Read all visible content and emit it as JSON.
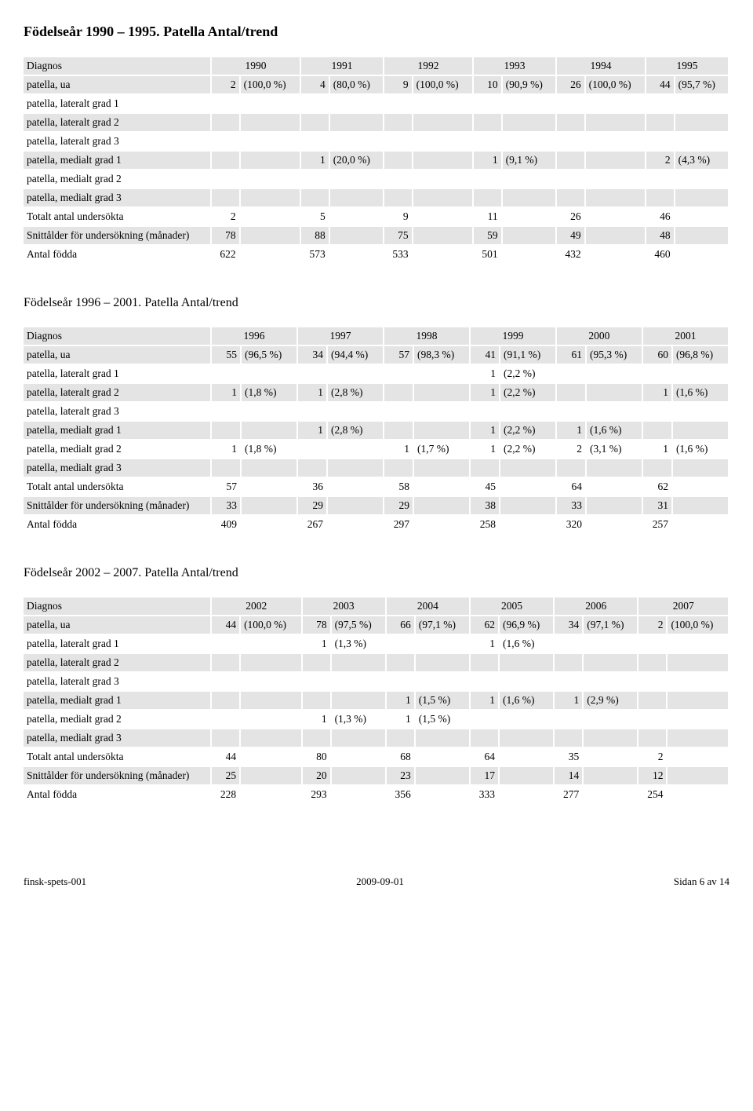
{
  "section1": {
    "title": "Födelseår 1990 – 1995.    Patella Antal/trend",
    "diagnos_label": "Diagnos",
    "years": [
      "1990",
      "1991",
      "1992",
      "1993",
      "1994",
      "1995"
    ],
    "rows": [
      {
        "label": "patella, ua",
        "shaded": true,
        "cells": [
          [
            "2",
            "(100,0 %)"
          ],
          [
            "4",
            "(80,0 %)"
          ],
          [
            "9",
            "(100,0 %)"
          ],
          [
            "10",
            "(90,9 %)"
          ],
          [
            "26",
            "(100,0 %)"
          ],
          [
            "44",
            "(95,7 %)"
          ]
        ]
      },
      {
        "label": "patella, lateralt grad 1",
        "shaded": false,
        "cells": [
          [
            "",
            ""
          ],
          [
            "",
            ""
          ],
          [
            "",
            ""
          ],
          [
            "",
            ""
          ],
          [
            "",
            ""
          ],
          [
            "",
            ""
          ]
        ]
      },
      {
        "label": "patella, lateralt grad 2",
        "shaded": true,
        "cells": [
          [
            "",
            ""
          ],
          [
            "",
            ""
          ],
          [
            "",
            ""
          ],
          [
            "",
            ""
          ],
          [
            "",
            ""
          ],
          [
            "",
            ""
          ]
        ]
      },
      {
        "label": "patella, lateralt grad 3",
        "shaded": false,
        "cells": [
          [
            "",
            ""
          ],
          [
            "",
            ""
          ],
          [
            "",
            ""
          ],
          [
            "",
            ""
          ],
          [
            "",
            ""
          ],
          [
            "",
            ""
          ]
        ]
      },
      {
        "label": "patella, medialt grad 1",
        "shaded": true,
        "cells": [
          [
            "",
            ""
          ],
          [
            "1",
            "(20,0 %)"
          ],
          [
            "",
            ""
          ],
          [
            "1",
            "(9,1 %)"
          ],
          [
            "",
            ""
          ],
          [
            "2",
            "(4,3 %)"
          ]
        ]
      },
      {
        "label": "patella, medialt grad 2",
        "shaded": false,
        "cells": [
          [
            "",
            ""
          ],
          [
            "",
            ""
          ],
          [
            "",
            ""
          ],
          [
            "",
            ""
          ],
          [
            "",
            ""
          ],
          [
            "",
            ""
          ]
        ]
      },
      {
        "label": "patella, medialt grad 3",
        "shaded": true,
        "cells": [
          [
            "",
            ""
          ],
          [
            "",
            ""
          ],
          [
            "",
            ""
          ],
          [
            "",
            ""
          ],
          [
            "",
            ""
          ],
          [
            "",
            ""
          ]
        ]
      },
      {
        "label": "Totalt antal undersökta",
        "shaded": false,
        "cells": [
          [
            "2",
            ""
          ],
          [
            "5",
            ""
          ],
          [
            "9",
            ""
          ],
          [
            "11",
            ""
          ],
          [
            "26",
            ""
          ],
          [
            "46",
            ""
          ]
        ]
      },
      {
        "label": "Snittålder för undersökning (månader)",
        "shaded": true,
        "cells": [
          [
            "78",
            ""
          ],
          [
            "88",
            ""
          ],
          [
            "75",
            ""
          ],
          [
            "59",
            ""
          ],
          [
            "49",
            ""
          ],
          [
            "48",
            ""
          ]
        ]
      },
      {
        "label": "Antal födda",
        "shaded": false,
        "cells": [
          [
            "622",
            ""
          ],
          [
            "573",
            ""
          ],
          [
            "533",
            ""
          ],
          [
            "501",
            ""
          ],
          [
            "432",
            ""
          ],
          [
            "460",
            ""
          ]
        ]
      }
    ]
  },
  "section2": {
    "title": "Födelseår 1996 – 2001.    Patella Antal/trend",
    "diagnos_label": "Diagnos",
    "years": [
      "1996",
      "1997",
      "1998",
      "1999",
      "2000",
      "2001"
    ],
    "rows": [
      {
        "label": "patella, ua",
        "shaded": true,
        "cells": [
          [
            "55",
            "(96,5 %)"
          ],
          [
            "34",
            "(94,4 %)"
          ],
          [
            "57",
            "(98,3 %)"
          ],
          [
            "41",
            "(91,1 %)"
          ],
          [
            "61",
            "(95,3 %)"
          ],
          [
            "60",
            "(96,8 %)"
          ]
        ]
      },
      {
        "label": "patella, lateralt grad 1",
        "shaded": false,
        "cells": [
          [
            "",
            ""
          ],
          [
            "",
            ""
          ],
          [
            "",
            ""
          ],
          [
            "1",
            "(2,2 %)"
          ],
          [
            "",
            ""
          ],
          [
            "",
            ""
          ]
        ]
      },
      {
        "label": "patella, lateralt grad 2",
        "shaded": true,
        "cells": [
          [
            "1",
            "(1,8 %)"
          ],
          [
            "1",
            "(2,8 %)"
          ],
          [
            "",
            ""
          ],
          [
            "1",
            "(2,2 %)"
          ],
          [
            "",
            ""
          ],
          [
            "1",
            "(1,6 %)"
          ]
        ]
      },
      {
        "label": "patella, lateralt grad 3",
        "shaded": false,
        "cells": [
          [
            "",
            ""
          ],
          [
            "",
            ""
          ],
          [
            "",
            ""
          ],
          [
            "",
            ""
          ],
          [
            "",
            ""
          ],
          [
            "",
            ""
          ]
        ]
      },
      {
        "label": "patella, medialt grad 1",
        "shaded": true,
        "cells": [
          [
            "",
            ""
          ],
          [
            "1",
            "(2,8 %)"
          ],
          [
            "",
            ""
          ],
          [
            "1",
            "(2,2 %)"
          ],
          [
            "1",
            "(1,6 %)"
          ],
          [
            "",
            ""
          ]
        ]
      },
      {
        "label": "patella, medialt grad 2",
        "shaded": false,
        "cells": [
          [
            "1",
            "(1,8 %)"
          ],
          [
            "",
            ""
          ],
          [
            "1",
            "(1,7 %)"
          ],
          [
            "1",
            "(2,2 %)"
          ],
          [
            "2",
            "(3,1 %)"
          ],
          [
            "1",
            "(1,6 %)"
          ]
        ]
      },
      {
        "label": "patella, medialt grad 3",
        "shaded": true,
        "cells": [
          [
            "",
            ""
          ],
          [
            "",
            ""
          ],
          [
            "",
            ""
          ],
          [
            "",
            ""
          ],
          [
            "",
            ""
          ],
          [
            "",
            ""
          ]
        ]
      },
      {
        "label": "Totalt antal undersökta",
        "shaded": false,
        "cells": [
          [
            "57",
            ""
          ],
          [
            "36",
            ""
          ],
          [
            "58",
            ""
          ],
          [
            "45",
            ""
          ],
          [
            "64",
            ""
          ],
          [
            "62",
            ""
          ]
        ]
      },
      {
        "label": "Snittålder för undersökning (månader)",
        "shaded": true,
        "cells": [
          [
            "33",
            ""
          ],
          [
            "29",
            ""
          ],
          [
            "29",
            ""
          ],
          [
            "38",
            ""
          ],
          [
            "33",
            ""
          ],
          [
            "31",
            ""
          ]
        ]
      },
      {
        "label": "Antal födda",
        "shaded": false,
        "cells": [
          [
            "409",
            ""
          ],
          [
            "267",
            ""
          ],
          [
            "297",
            ""
          ],
          [
            "258",
            ""
          ],
          [
            "320",
            ""
          ],
          [
            "257",
            ""
          ]
        ]
      }
    ]
  },
  "section3": {
    "title": "Födelseår 2002 – 2007.    Patella Antal/trend",
    "diagnos_label": "Diagnos",
    "years": [
      "2002",
      "2003",
      "2004",
      "2005",
      "2006",
      "2007"
    ],
    "rows": [
      {
        "label": "patella, ua",
        "shaded": true,
        "cells": [
          [
            "44",
            "(100,0 %)"
          ],
          [
            "78",
            "(97,5 %)"
          ],
          [
            "66",
            "(97,1 %)"
          ],
          [
            "62",
            "(96,9 %)"
          ],
          [
            "34",
            "(97,1 %)"
          ],
          [
            "2",
            "(100,0 %)"
          ]
        ]
      },
      {
        "label": "patella, lateralt grad 1",
        "shaded": false,
        "cells": [
          [
            "",
            ""
          ],
          [
            "1",
            "(1,3 %)"
          ],
          [
            "",
            ""
          ],
          [
            "1",
            "(1,6 %)"
          ],
          [
            "",
            ""
          ],
          [
            "",
            ""
          ]
        ]
      },
      {
        "label": "patella, lateralt grad 2",
        "shaded": true,
        "cells": [
          [
            "",
            ""
          ],
          [
            "",
            ""
          ],
          [
            "",
            ""
          ],
          [
            "",
            ""
          ],
          [
            "",
            ""
          ],
          [
            "",
            ""
          ]
        ]
      },
      {
        "label": "patella, lateralt grad 3",
        "shaded": false,
        "cells": [
          [
            "",
            ""
          ],
          [
            "",
            ""
          ],
          [
            "",
            ""
          ],
          [
            "",
            ""
          ],
          [
            "",
            ""
          ],
          [
            "",
            ""
          ]
        ]
      },
      {
        "label": "patella, medialt grad 1",
        "shaded": true,
        "cells": [
          [
            "",
            ""
          ],
          [
            "",
            ""
          ],
          [
            "1",
            "(1,5 %)"
          ],
          [
            "1",
            "(1,6 %)"
          ],
          [
            "1",
            "(2,9 %)"
          ],
          [
            "",
            ""
          ]
        ]
      },
      {
        "label": "patella, medialt grad 2",
        "shaded": false,
        "cells": [
          [
            "",
            ""
          ],
          [
            "1",
            "(1,3 %)"
          ],
          [
            "1",
            "(1,5 %)"
          ],
          [
            "",
            ""
          ],
          [
            "",
            ""
          ],
          [
            "",
            ""
          ]
        ]
      },
      {
        "label": "patella, medialt grad 3",
        "shaded": true,
        "cells": [
          [
            "",
            ""
          ],
          [
            "",
            ""
          ],
          [
            "",
            ""
          ],
          [
            "",
            ""
          ],
          [
            "",
            ""
          ],
          [
            "",
            ""
          ]
        ]
      },
      {
        "label": "Totalt antal undersökta",
        "shaded": false,
        "cells": [
          [
            "44",
            ""
          ],
          [
            "80",
            ""
          ],
          [
            "68",
            ""
          ],
          [
            "64",
            ""
          ],
          [
            "35",
            ""
          ],
          [
            "2",
            ""
          ]
        ]
      },
      {
        "label": "Snittålder för undersökning (månader)",
        "shaded": true,
        "cells": [
          [
            "25",
            ""
          ],
          [
            "20",
            ""
          ],
          [
            "23",
            ""
          ],
          [
            "17",
            ""
          ],
          [
            "14",
            ""
          ],
          [
            "12",
            ""
          ]
        ]
      },
      {
        "label": "Antal födda",
        "shaded": false,
        "cells": [
          [
            "228",
            ""
          ],
          [
            "293",
            ""
          ],
          [
            "356",
            ""
          ],
          [
            "333",
            ""
          ],
          [
            "277",
            ""
          ],
          [
            "254",
            ""
          ]
        ]
      }
    ]
  },
  "footer": {
    "left": "finsk-spets-001",
    "center": "2009-09-01",
    "right": "Sidan 6 av 14"
  }
}
